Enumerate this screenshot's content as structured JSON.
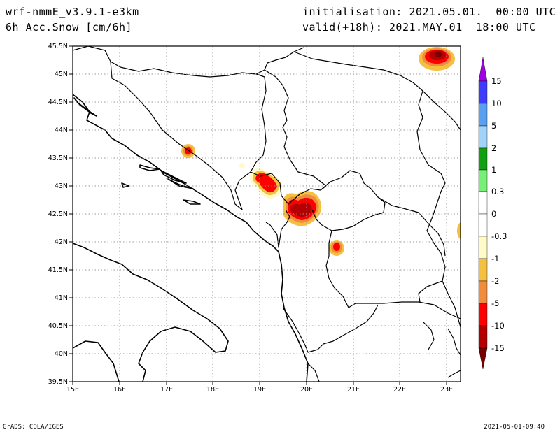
{
  "header": {
    "model": "wrf-nmmE_v3.9.1-e3km",
    "field": "6h Acc.Snow [cm/6h]",
    "init": "initialisation: 2021.05.01.  00:00 UTC",
    "valid": "valid(+18h): 2021.MAY.01  18:00 UTC"
  },
  "footer": {
    "credit": "GrADS: COLA/IGES",
    "timestamp": "2021-05-01-09:40"
  },
  "map": {
    "lon_range": [
      15,
      23.3
    ],
    "lat_range": [
      39.5,
      45.5
    ],
    "lon_ticks": [
      "15E",
      "16E",
      "17E",
      "18E",
      "19E",
      "20E",
      "21E",
      "22E",
      "23E"
    ],
    "lat_ticks": [
      "39.5N",
      "40N",
      "40.5N",
      "41N",
      "41.5N",
      "42N",
      "42.5N",
      "43N",
      "43.5N",
      "44N",
      "44.5N",
      "45N",
      "45.5N"
    ],
    "grid": "dotted"
  },
  "colorbar": {
    "labels": [
      "15",
      "10",
      "5",
      "2",
      "1",
      "0.3",
      "0",
      "-0.3",
      "-1",
      "-2",
      "-5",
      "-10",
      "-15"
    ],
    "colors": [
      "#a000e6",
      "#3c3cff",
      "#5aa0f0",
      "#a0d2fa",
      "#10a010",
      "#78f078",
      "#ffffff",
      "#ffffff",
      "#fffac8",
      "#f5c040",
      "#f08c3c",
      "#ff0000",
      "#b40000",
      "#7a0000"
    ]
  },
  "colors": {
    "light_yellow": "#fffac8",
    "yellow": "#f5c040",
    "orange": "#f08c3c",
    "red": "#ff0000",
    "dark_red": "#b40000",
    "darkest_red": "#7a0000"
  }
}
